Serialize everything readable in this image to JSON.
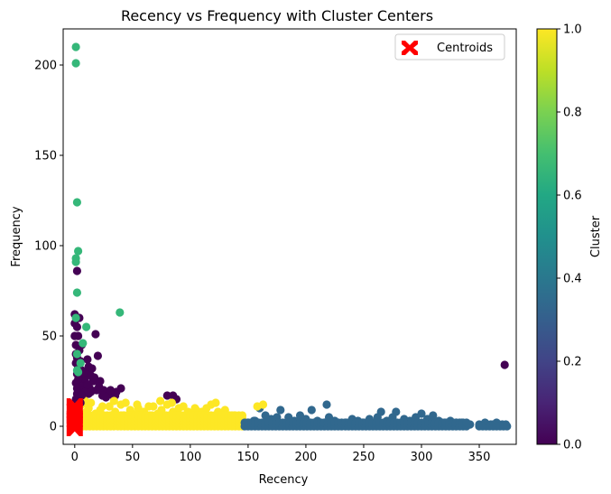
{
  "chart_data": {
    "type": "scatter",
    "title": "Recency vs Frequency with Cluster Centers",
    "xlabel": "Recency",
    "ylabel": "Frequency",
    "xlim": [
      -10,
      382
    ],
    "ylim": [
      -10,
      220
    ],
    "xticks": [
      0,
      50,
      100,
      150,
      200,
      250,
      300,
      350
    ],
    "yticks": [
      0,
      50,
      100,
      150,
      200
    ],
    "grid": false,
    "legend": {
      "position": "top-right",
      "entries": [
        "Centroids"
      ]
    },
    "colorbar": {
      "label": "Cluster",
      "range": [
        0,
        1
      ],
      "ticks": [
        "0.0",
        "0.2",
        "0.4",
        "0.6",
        "0.8",
        "1.0"
      ],
      "colormap": "viridis"
    },
    "colors": {
      "cluster_purple": "#440154",
      "cluster_blue": "#31688e",
      "cluster_green": "#35b779",
      "cluster_yellow": "#fde725",
      "centroid": "#ff0000"
    },
    "series": [
      {
        "cluster_value": 0.0,
        "color": "#440154",
        "points": [
          [
            0,
            62
          ],
          [
            0,
            57
          ],
          [
            1,
            45
          ],
          [
            2,
            86
          ],
          [
            3,
            50
          ],
          [
            1,
            40
          ],
          [
            2,
            38
          ],
          [
            4,
            42
          ],
          [
            5,
            36
          ],
          [
            3,
            33
          ],
          [
            6,
            31
          ],
          [
            2,
            29
          ],
          [
            8,
            28
          ],
          [
            4,
            26
          ],
          [
            9,
            25
          ],
          [
            1,
            24
          ],
          [
            3,
            22
          ],
          [
            7,
            22
          ],
          [
            10,
            30
          ],
          [
            12,
            33
          ],
          [
            11,
            37
          ],
          [
            6,
            45
          ],
          [
            15,
            32
          ],
          [
            14,
            28
          ],
          [
            16,
            25
          ],
          [
            18,
            51
          ],
          [
            17,
            27
          ],
          [
            20,
            39
          ],
          [
            22,
            25
          ],
          [
            13,
            21
          ],
          [
            19,
            20
          ],
          [
            25,
            20
          ],
          [
            28,
            19
          ],
          [
            30,
            18
          ],
          [
            33,
            17
          ],
          [
            36,
            19
          ],
          [
            40,
            21
          ],
          [
            5,
            19
          ],
          [
            8,
            18
          ],
          [
            12,
            18
          ],
          [
            24,
            17
          ],
          [
            35,
            17
          ],
          [
            80,
            17
          ],
          [
            85,
            17
          ],
          [
            88,
            15
          ],
          [
            372,
            34
          ],
          [
            2,
            55
          ],
          [
            4,
            60
          ],
          [
            0,
            50
          ],
          [
            1,
            35
          ],
          [
            3,
            26
          ],
          [
            6,
            20
          ],
          [
            9,
            19
          ],
          [
            11,
            23
          ],
          [
            14,
            19
          ],
          [
            21,
            22
          ],
          [
            27,
            16
          ],
          [
            31,
            20
          ]
        ]
      },
      {
        "cluster_value": 0.3,
        "color": "#31688e",
        "points": [
          [
            160,
            10
          ],
          [
            178,
            9
          ],
          [
            205,
            9
          ],
          [
            218,
            12
          ],
          [
            265,
            8
          ],
          [
            278,
            8
          ],
          [
            300,
            7
          ],
          [
            310,
            6
          ],
          [
            262,
            5
          ],
          [
            240,
            4
          ],
          [
            220,
            5
          ],
          [
            195,
            6
          ],
          [
            185,
            5
          ],
          [
            170,
            4
          ],
          [
            155,
            3
          ],
          [
            150,
            2
          ],
          [
            165,
            6
          ],
          [
            175,
            5
          ],
          [
            190,
            3
          ],
          [
            200,
            4
          ],
          [
            210,
            3
          ],
          [
            225,
            3
          ],
          [
            235,
            2
          ],
          [
            245,
            3
          ],
          [
            250,
            2
          ],
          [
            255,
            4
          ],
          [
            270,
            3
          ],
          [
            275,
            5
          ],
          [
            285,
            4
          ],
          [
            290,
            3
          ],
          [
            295,
            5
          ],
          [
            305,
            4
          ],
          [
            315,
            3
          ],
          [
            320,
            2
          ],
          [
            325,
            3
          ],
          [
            330,
            2
          ],
          [
            335,
            2
          ],
          [
            340,
            1
          ],
          [
            350,
            1
          ],
          [
            355,
            2
          ],
          [
            360,
            1
          ],
          [
            365,
            2
          ],
          [
            370,
            1
          ],
          [
            373,
            1
          ],
          [
            148,
            1
          ],
          [
            160,
            1
          ],
          [
            172,
            1
          ],
          [
            182,
            1
          ],
          [
            192,
            1
          ],
          [
            202,
            1
          ],
          [
            212,
            1
          ],
          [
            222,
            1
          ],
          [
            232,
            1
          ],
          [
            242,
            1
          ],
          [
            252,
            1
          ],
          [
            262,
            1
          ],
          [
            272,
            1
          ],
          [
            282,
            1
          ],
          [
            292,
            1
          ],
          [
            302,
            1
          ],
          [
            312,
            1
          ],
          [
            322,
            1
          ],
          [
            332,
            1
          ],
          [
            342,
            1
          ],
          [
            357,
            1
          ],
          [
            367,
            1
          ],
          [
            156,
            3
          ],
          [
            186,
            2
          ],
          [
            216,
            2
          ],
          [
            246,
            2
          ],
          [
            276,
            2
          ],
          [
            306,
            2
          ],
          [
            336,
            1
          ],
          [
            362,
            1
          ]
        ]
      },
      {
        "cluster_value": 0.6,
        "color": "#35b779",
        "points": [
          [
            1,
            210
          ],
          [
            1,
            201
          ],
          [
            2,
            124
          ],
          [
            3,
            97
          ],
          [
            1,
            93
          ],
          [
            1,
            91
          ],
          [
            2,
            74
          ],
          [
            39,
            63
          ],
          [
            1,
            60
          ],
          [
            10,
            55
          ],
          [
            7,
            46
          ],
          [
            2,
            40
          ],
          [
            5,
            35
          ],
          [
            3,
            30
          ],
          [
            2,
            31
          ]
        ]
      },
      {
        "cluster_value": 1.0,
        "color": "#fde725",
        "points": [
          [
            5,
            3
          ],
          [
            8,
            5
          ],
          [
            10,
            8
          ],
          [
            12,
            10
          ],
          [
            15,
            4
          ],
          [
            18,
            7
          ],
          [
            20,
            2
          ],
          [
            22,
            9
          ],
          [
            25,
            6
          ],
          [
            28,
            3
          ],
          [
            30,
            11
          ],
          [
            32,
            5
          ],
          [
            35,
            8
          ],
          [
            38,
            2
          ],
          [
            40,
            12
          ],
          [
            42,
            6
          ],
          [
            45,
            4
          ],
          [
            48,
            9
          ],
          [
            50,
            7
          ],
          [
            52,
            3
          ],
          [
            55,
            10
          ],
          [
            58,
            5
          ],
          [
            60,
            8
          ],
          [
            62,
            2
          ],
          [
            65,
            6
          ],
          [
            68,
            11
          ],
          [
            70,
            4
          ],
          [
            72,
            7
          ],
          [
            75,
            9
          ],
          [
            78,
            3
          ],
          [
            80,
            12
          ],
          [
            82,
            5
          ],
          [
            85,
            8
          ],
          [
            88,
            2
          ],
          [
            90,
            10
          ],
          [
            92,
            6
          ],
          [
            95,
            4
          ],
          [
            98,
            8
          ],
          [
            100,
            7
          ],
          [
            102,
            3
          ],
          [
            105,
            9
          ],
          [
            108,
            5
          ],
          [
            110,
            8
          ],
          [
            112,
            2
          ],
          [
            115,
            6
          ],
          [
            118,
            12
          ],
          [
            120,
            4
          ],
          [
            122,
            13
          ],
          [
            125,
            7
          ],
          [
            128,
            3
          ],
          [
            130,
            9
          ],
          [
            132,
            5
          ],
          [
            135,
            2
          ],
          [
            138,
            6
          ],
          [
            140,
            3
          ],
          [
            143,
            1
          ],
          [
            145,
            4
          ],
          [
            158,
            11
          ],
          [
            163,
            12
          ],
          [
            6,
            12
          ],
          [
            9,
            14
          ],
          [
            14,
            13
          ],
          [
            24,
            11
          ],
          [
            34,
            14
          ],
          [
            44,
            13
          ],
          [
            54,
            12
          ],
          [
            64,
            11
          ],
          [
            74,
            14
          ],
          [
            84,
            13
          ],
          [
            94,
            11
          ],
          [
            104,
            10
          ],
          [
            114,
            10
          ],
          [
            124,
            8
          ],
          [
            134,
            6
          ],
          [
            16,
            1
          ],
          [
            26,
            1
          ],
          [
            36,
            1
          ],
          [
            46,
            1
          ],
          [
            56,
            1
          ],
          [
            66,
            1
          ],
          [
            76,
            1
          ],
          [
            86,
            1
          ],
          [
            96,
            1
          ],
          [
            106,
            1
          ],
          [
            116,
            1
          ],
          [
            126,
            1
          ],
          [
            136,
            1
          ]
        ]
      }
    ],
    "centroids": [
      [
        0,
        11
      ],
      [
        0,
        8
      ],
      [
        0,
        6
      ],
      [
        0,
        3
      ],
      [
        0,
        1
      ],
      [
        0,
        -1
      ],
      [
        0,
        4
      ],
      [
        0,
        9
      ]
    ]
  }
}
